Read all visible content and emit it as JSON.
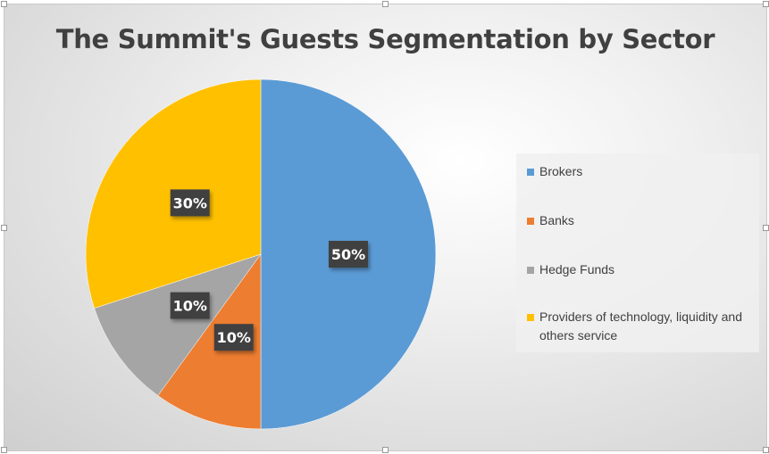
{
  "chart_data": {
    "type": "pie",
    "title": "The Summit's Guests Segmentation by Sector",
    "start_angle_deg": 0,
    "direction": "clockwise",
    "legend_placement": "right",
    "slices": [
      {
        "name": "Brokers",
        "value": 50,
        "label": "50%",
        "color": "#5B9BD5"
      },
      {
        "name": "Banks",
        "value": 10,
        "label": "10%",
        "color": "#ED7D31"
      },
      {
        "name": "Hedge Funds",
        "value": 10,
        "label": "10%",
        "color": "#A5A5A5"
      },
      {
        "name": "Providers of technology, liquidity and others service",
        "value": 30,
        "label": "30%",
        "color": "#FFC000"
      }
    ]
  }
}
